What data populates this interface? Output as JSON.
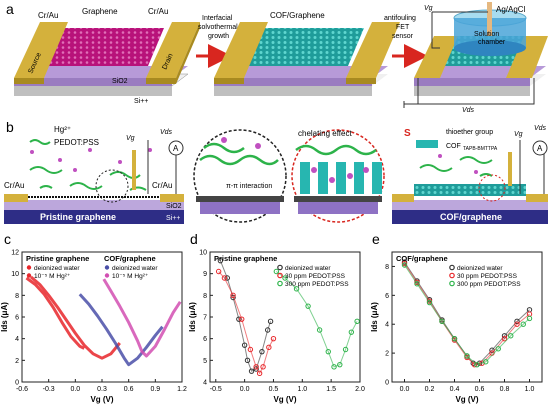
{
  "figure": {
    "panel_labels": [
      "a",
      "b",
      "c",
      "d",
      "e"
    ],
    "panel_a": {
      "device1": {
        "left_contact": "Cr/Au",
        "right_contact": "Cr/Au",
        "channel": "Graphene",
        "source": "Source",
        "drain": "Drain",
        "oxide": "SiO2",
        "substrate": "Si++"
      },
      "arrow1_text": [
        "Interfacial",
        "solvothermal",
        "growth"
      ],
      "device2_title": "COF/Graphene",
      "arrow2_text": [
        "antifouling",
        "FET",
        "sensor"
      ],
      "device3": {
        "vg": "Vg",
        "electrode": "Ag/AgCl",
        "chamber": [
          "Solution",
          "chamber"
        ],
        "vds": "Vds"
      }
    },
    "panel_b": {
      "legend_hg": "Hg²⁺",
      "legend_pedot": "PEDOT:PSS",
      "left_contact": "Cr/Au",
      "right_contact": "Cr/Au",
      "pristine_label": "Pristine graphene",
      "oxide": "SiO2",
      "substrate": "Si++",
      "zoom1_text": "π-π interaction",
      "zoom2_text": "chelating effect",
      "thioether": "thioether group",
      "cof_name": "COF",
      "cof_sub": "TAPB-BMTTPA",
      "cof_graphene_label": "COF/graphene",
      "vg": "Vg",
      "vds": "Vds",
      "ammeter": "A"
    }
  },
  "colors": {
    "gold": "#d4b13c",
    "graphene": "#b8127a",
    "cof": "#27b6b0",
    "oxide": "#b79ad8",
    "si": "#2e2d86",
    "red_curve": "#e8262a",
    "blue_curve": "#4a4fa8",
    "magenta_curve": "#d24fb2",
    "black_curve": "#333333",
    "green_curve": "#2db34a"
  },
  "chart_data": [
    {
      "type": "line",
      "panel": "c",
      "xlabel": "Vg (V)",
      "ylabel": "Ids (μA)",
      "xlim": [
        -0.6,
        1.2
      ],
      "ylim": [
        0,
        12
      ],
      "xticks": [
        -0.6,
        -0.3,
        0.0,
        0.3,
        0.6,
        0.9,
        1.2
      ],
      "yticks": [
        0,
        2,
        4,
        6,
        8,
        10,
        12
      ],
      "groups": [
        {
          "title": "Pristine graphene",
          "entries": [
            {
              "name": "deionized water"
            },
            {
              "name": "10⁻⁵ M Hg²⁺"
            }
          ]
        },
        {
          "title": "COF/graphene",
          "entries": [
            {
              "name": "deionized water"
            },
            {
              "name": "10⁻⁵ M Hg²⁺"
            }
          ]
        }
      ],
      "series": [
        {
          "group": 0,
          "entry": 0,
          "x": [
            -0.55,
            -0.45,
            -0.35,
            -0.25,
            -0.15,
            -0.05,
            0.05,
            0.1
          ],
          "y": [
            9.6,
            9.0,
            8.1,
            6.9,
            5.5,
            4.2,
            3.3,
            3.1
          ]
        },
        {
          "group": 0,
          "entry": 1,
          "x": [
            -0.5,
            -0.4,
            -0.3,
            -0.2,
            -0.1,
            0.0,
            0.1,
            0.2,
            0.3,
            0.4,
            0.5
          ],
          "y": [
            9.7,
            9.0,
            8.0,
            6.9,
            5.7,
            4.5,
            3.4,
            2.6,
            2.2,
            2.6,
            3.6
          ]
        },
        {
          "group": 1,
          "entry": 0,
          "x": [
            0.05,
            0.15,
            0.25,
            0.35,
            0.45,
            0.55,
            0.6,
            0.7,
            0.8,
            0.9,
            0.98
          ],
          "y": [
            8.1,
            7.2,
            6.1,
            4.9,
            3.6,
            2.2,
            1.6,
            2.2,
            3.2,
            4.3,
            5.1
          ]
        },
        {
          "group": 1,
          "entry": 1,
          "x": [
            0.32,
            0.4,
            0.5,
            0.6,
            0.7,
            0.75,
            0.8,
            0.9,
            1.0,
            1.1,
            1.18
          ],
          "y": [
            9.5,
            8.4,
            7.0,
            5.5,
            3.8,
            2.8,
            2.4,
            3.3,
            4.8,
            6.4,
            7.4
          ]
        }
      ]
    },
    {
      "type": "scatter",
      "panel": "d",
      "title": "Pristine graphene",
      "xlabel": "Vg (V)",
      "ylabel": "Ids (μA)",
      "xlim": [
        -0.6,
        2.0
      ],
      "ylim": [
        4,
        10
      ],
      "xticks": [
        -0.5,
        0.0,
        0.5,
        1.0,
        1.5,
        2.0
      ],
      "yticks": [
        4,
        5,
        6,
        7,
        8,
        9,
        10
      ],
      "series": [
        {
          "name": "deionized water",
          "x": [
            -0.42,
            -0.3,
            -0.2,
            -0.1,
            0.0,
            0.05,
            0.12,
            0.2,
            0.3,
            0.4,
            0.45
          ],
          "y": [
            9.6,
            8.8,
            7.9,
            6.9,
            5.7,
            5.0,
            4.5,
            4.6,
            5.4,
            6.4,
            6.8
          ]
        },
        {
          "name": "30 ppm PEDOT:PSS",
          "x": [
            -0.45,
            -0.35,
            -0.2,
            -0.05,
            0.1,
            0.2,
            0.26,
            0.32,
            0.42,
            0.5
          ],
          "y": [
            9.1,
            8.8,
            8.0,
            6.9,
            5.5,
            4.7,
            4.4,
            4.7,
            5.6,
            6.0
          ]
        },
        {
          "name": "300 ppm PEDOT:PSS",
          "x": [
            0.55,
            0.7,
            0.9,
            1.1,
            1.3,
            1.45,
            1.55,
            1.65,
            1.75,
            1.85,
            1.95
          ],
          "y": [
            9.1,
            8.8,
            8.3,
            7.5,
            6.4,
            5.4,
            4.7,
            4.8,
            5.5,
            6.3,
            6.8
          ]
        }
      ]
    },
    {
      "type": "scatter",
      "panel": "e",
      "title": "COF/graphene",
      "xlabel": "Vg (V)",
      "ylabel": "Ids (μA)",
      "xlim": [
        -0.1,
        1.1
      ],
      "ylim": [
        0,
        9
      ],
      "xticks": [
        0.0,
        0.2,
        0.4,
        0.6,
        0.8,
        1.0
      ],
      "yticks": [
        0,
        2,
        4,
        6,
        8
      ],
      "series": [
        {
          "name": "deionized water",
          "x": [
            0.0,
            0.1,
            0.2,
            0.3,
            0.4,
            0.5,
            0.55,
            0.6,
            0.7,
            0.8,
            0.9,
            1.0
          ],
          "y": [
            8.3,
            7.0,
            5.7,
            4.3,
            3.0,
            1.8,
            1.3,
            1.3,
            2.2,
            3.2,
            4.2,
            5.0
          ]
        },
        {
          "name": "30 ppm PEDOT:PSS",
          "x": [
            0.0,
            0.1,
            0.2,
            0.3,
            0.4,
            0.5,
            0.56,
            0.62,
            0.7,
            0.8,
            0.9,
            1.0
          ],
          "y": [
            8.2,
            6.9,
            5.6,
            4.2,
            2.9,
            1.7,
            1.2,
            1.3,
            2.0,
            3.0,
            4.0,
            4.7
          ]
        },
        {
          "name": "300 ppm PEDOT:PSS",
          "x": [
            0.0,
            0.1,
            0.2,
            0.3,
            0.4,
            0.5,
            0.58,
            0.65,
            0.75,
            0.85,
            0.95,
            1.0
          ],
          "y": [
            8.1,
            6.8,
            5.5,
            4.2,
            3.0,
            1.8,
            1.2,
            1.4,
            2.3,
            3.2,
            4.0,
            4.4
          ]
        }
      ]
    }
  ]
}
